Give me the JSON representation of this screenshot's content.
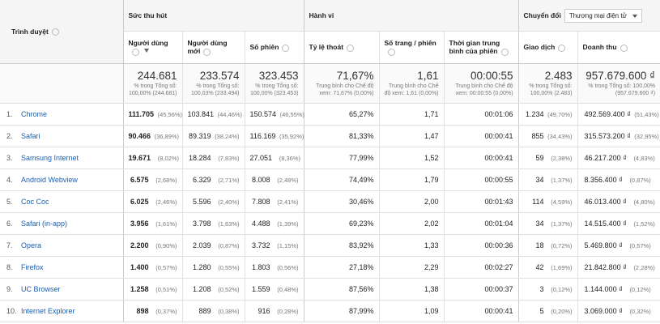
{
  "header": {
    "dimension": "Trình duyệt",
    "groups": [
      "Sức thu hút",
      "Hành vi",
      "Chuyển đổi"
    ],
    "dropdown": "Thương mại điện tử"
  },
  "columns": [
    "Người dùng",
    "Người dùng mới",
    "Số phiên",
    "Tỷ lệ thoát",
    "Số trang / phiên",
    "Thời gian trung bình của phiên",
    "Giao dịch",
    "Doanh thu"
  ],
  "totals": [
    {
      "value": "244.681",
      "note": "% trong Tổng số: 100,00% (244.681)"
    },
    {
      "value": "233.574",
      "note": "% trong Tổng số: 100,03% (233.494)"
    },
    {
      "value": "323.453",
      "note": "% trong Tổng số: 100,00% (323.453)"
    },
    {
      "value": "71,67%",
      "note": "Trung bình cho Chế độ xem: 71,67% (0,00%)"
    },
    {
      "value": "1,61",
      "note": "Trung bình cho Chế độ xem: 1,61 (0,00%)"
    },
    {
      "value": "00:00:55",
      "note": "Trung bình cho Chế độ xem: 00:00:55 (0,00%)"
    },
    {
      "value": "2.483",
      "note": "% trong Tổng số: 100,00% (2.483)"
    },
    {
      "value": "957.679.600 ₫",
      "note": "% trong Tổng số: 100,00% (957.679.600 ₫)"
    }
  ],
  "rows": [
    {
      "index": "1.",
      "name": "Chrome",
      "cells": [
        {
          "value": "111.705",
          "pct": "(45,56%)"
        },
        {
          "value": "103.841",
          "pct": "(44,46%)"
        },
        {
          "value": "150.574",
          "pct": "(46,55%)"
        },
        {
          "value": "65,27%"
        },
        {
          "value": "1,71"
        },
        {
          "value": "00:01:06"
        },
        {
          "value": "1.234",
          "pct": "(49,70%)"
        },
        {
          "value": "492.569.400 ₫",
          "pct": "(51,43%)"
        }
      ]
    },
    {
      "index": "2.",
      "name": "Safari",
      "cells": [
        {
          "value": "90.466",
          "pct": "(36,89%)"
        },
        {
          "value": "89.319",
          "pct": "(38,24%)"
        },
        {
          "value": "116.169",
          "pct": "(35,92%)"
        },
        {
          "value": "81,33%"
        },
        {
          "value": "1,47"
        },
        {
          "value": "00:00:41"
        },
        {
          "value": "855",
          "pct": "(34,43%)"
        },
        {
          "value": "315.573.200 ₫",
          "pct": "(32,95%)"
        }
      ]
    },
    {
      "index": "3.",
      "name": "Samsung Internet",
      "cells": [
        {
          "value": "19.671",
          "pct": "(8,02%)"
        },
        {
          "value": "18.284",
          "pct": "(7,83%)"
        },
        {
          "value": "27.051",
          "pct": "(8,36%)"
        },
        {
          "value": "77,99%"
        },
        {
          "value": "1,52"
        },
        {
          "value": "00:00:41"
        },
        {
          "value": "59",
          "pct": "(2,38%)"
        },
        {
          "value": "46.217.200 ₫",
          "pct": "(4,83%)"
        }
      ]
    },
    {
      "index": "4.",
      "name": "Android Webview",
      "cells": [
        {
          "value": "6.575",
          "pct": "(2,68%)"
        },
        {
          "value": "6.329",
          "pct": "(2,71%)"
        },
        {
          "value": "8.008",
          "pct": "(2,48%)"
        },
        {
          "value": "74,49%"
        },
        {
          "value": "1,79"
        },
        {
          "value": "00:00:55"
        },
        {
          "value": "34",
          "pct": "(1,37%)"
        },
        {
          "value": "8.356.400 ₫",
          "pct": "(0,87%)"
        }
      ]
    },
    {
      "index": "5.",
      "name": "Coc Coc",
      "cells": [
        {
          "value": "6.025",
          "pct": "(2,46%)"
        },
        {
          "value": "5.596",
          "pct": "(2,40%)"
        },
        {
          "value": "7.808",
          "pct": "(2,41%)"
        },
        {
          "value": "30,46%"
        },
        {
          "value": "2,00"
        },
        {
          "value": "00:01:43"
        },
        {
          "value": "114",
          "pct": "(4,59%)"
        },
        {
          "value": "46.013.400 ₫",
          "pct": "(4,80%)"
        }
      ]
    },
    {
      "index": "6.",
      "name": "Safari (in-app)",
      "cells": [
        {
          "value": "3.956",
          "pct": "(1,61%)"
        },
        {
          "value": "3.798",
          "pct": "(1,63%)"
        },
        {
          "value": "4.488",
          "pct": "(1,39%)"
        },
        {
          "value": "69,23%"
        },
        {
          "value": "2,02"
        },
        {
          "value": "00:01:04"
        },
        {
          "value": "34",
          "pct": "(1,37%)"
        },
        {
          "value": "14.515.400 ₫",
          "pct": "(1,52%)"
        }
      ]
    },
    {
      "index": "7.",
      "name": "Opera",
      "cells": [
        {
          "value": "2.200",
          "pct": "(0,90%)"
        },
        {
          "value": "2.039",
          "pct": "(0,87%)"
        },
        {
          "value": "3.732",
          "pct": "(1,15%)"
        },
        {
          "value": "83,92%"
        },
        {
          "value": "1,33"
        },
        {
          "value": "00:00:36"
        },
        {
          "value": "18",
          "pct": "(0,72%)"
        },
        {
          "value": "5.469.800 ₫",
          "pct": "(0,57%)"
        }
      ]
    },
    {
      "index": "8.",
      "name": "Firefox",
      "cells": [
        {
          "value": "1.400",
          "pct": "(0,57%)"
        },
        {
          "value": "1.280",
          "pct": "(0,55%)"
        },
        {
          "value": "1.803",
          "pct": "(0,56%)"
        },
        {
          "value": "27,18%"
        },
        {
          "value": "2,29"
        },
        {
          "value": "00:02:27"
        },
        {
          "value": "42",
          "pct": "(1,69%)"
        },
        {
          "value": "21.842.800 ₫",
          "pct": "(2,28%)"
        }
      ]
    },
    {
      "index": "9.",
      "name": "UC Browser",
      "cells": [
        {
          "value": "1.258",
          "pct": "(0,51%)"
        },
        {
          "value": "1.208",
          "pct": "(0,52%)"
        },
        {
          "value": "1.559",
          "pct": "(0,48%)"
        },
        {
          "value": "87,56%"
        },
        {
          "value": "1,38"
        },
        {
          "value": "00:00:37"
        },
        {
          "value": "3",
          "pct": "(0,12%)"
        },
        {
          "value": "1.144.000 ₫",
          "pct": "(0,12%)"
        }
      ]
    },
    {
      "index": "10.",
      "name": "Internet Explorer",
      "cells": [
        {
          "value": "898",
          "pct": "(0,37%)"
        },
        {
          "value": "889",
          "pct": "(0,38%)"
        },
        {
          "value": "916",
          "pct": "(0,28%)"
        },
        {
          "value": "87,99%"
        },
        {
          "value": "1,09"
        },
        {
          "value": "00:00:41"
        },
        {
          "value": "5",
          "pct": "(0,20%)"
        },
        {
          "value": "3.069.000 ₫",
          "pct": "(0,32%)"
        }
      ]
    }
  ]
}
